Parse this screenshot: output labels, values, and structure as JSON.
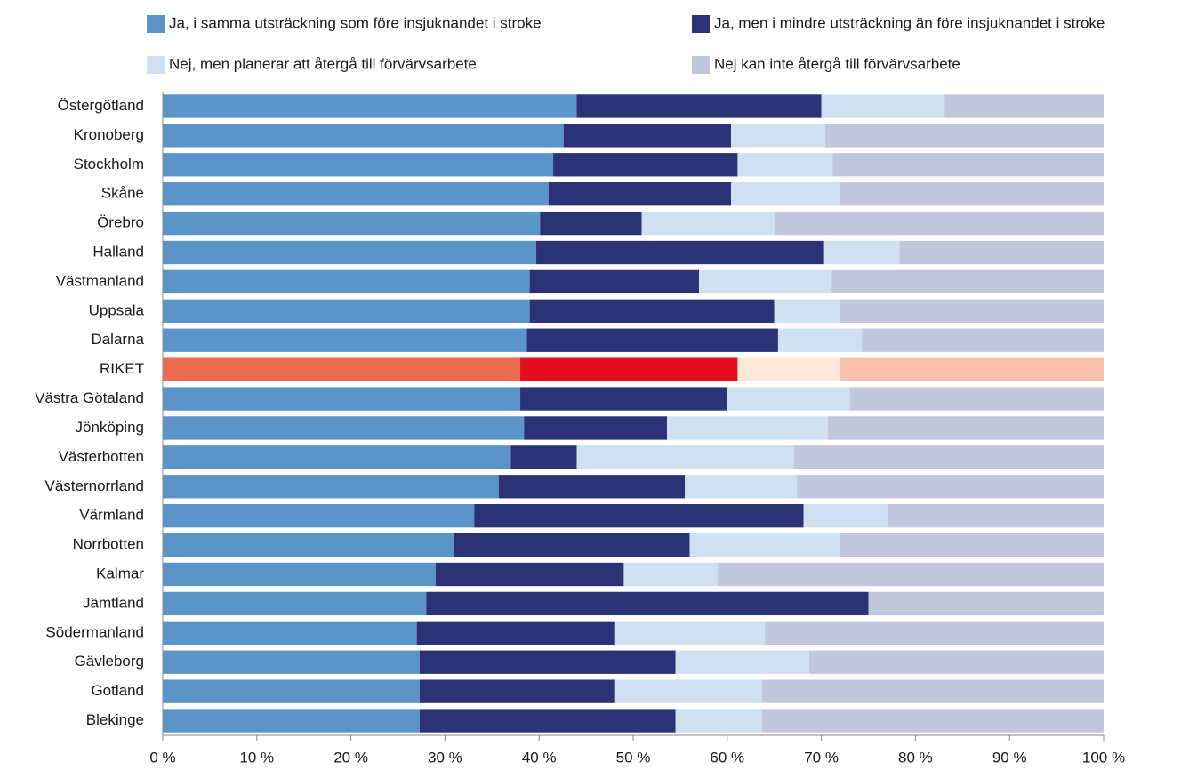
{
  "chart_data": {
    "type": "stacked_barh",
    "categories": [
      "Östergötland",
      "Kronoberg",
      "Stockholm",
      "Skåne",
      "Örebro",
      "Halland",
      "Västmanland",
      "Uppsala",
      "Dalarna",
      "RIKET",
      "Västra Götaland",
      "Jönköping",
      "Västerbotten",
      "Västernorrland",
      "Värmland",
      "Norrbotten",
      "Kalmar",
      "Jämtland",
      "Södermanland",
      "Gävleborg",
      "Gotland",
      "Blekinge"
    ],
    "series": [
      {
        "name": "Ja, i samma utsträckning som före insjuknandet i stroke",
        "color": "#5b94c9",
        "values": [
          44,
          42.6,
          41.5,
          41,
          40.1,
          39.7,
          39,
          39,
          38.7,
          38,
          38,
          38.4,
          37,
          35.7,
          33.1,
          31,
          29,
          28,
          27,
          27.3,
          27.3,
          27.3
        ]
      },
      {
        "name": "Ja, men i mindre utsträckning än före insjuknandet i stroke",
        "color": "#2b3275",
        "values": [
          26,
          17.8,
          19.6,
          19.4,
          10.8,
          30.6,
          18,
          26,
          26.7,
          23.1,
          22,
          15.2,
          7,
          19.8,
          35,
          25,
          20,
          47,
          21,
          27.2,
          20.7,
          27.2
        ]
      },
      {
        "name": "Nej, men planerar att återgå till förvärvsarbete",
        "color": "#cfe1f0",
        "values": [
          13.1,
          10,
          10.1,
          11.6,
          14.1,
          8,
          14.1,
          7,
          8.9,
          10.9,
          13,
          17.1,
          23.1,
          11.9,
          8.9,
          16,
          10,
          0,
          16,
          14.2,
          15.7,
          9.2
        ]
      },
      {
        "name": "Nej kan inte återgå till förvärvsarbete",
        "color": "#bfc8dc",
        "values": [
          16.9,
          29.6,
          28.8,
          28,
          35,
          21.7,
          28.9,
          28,
          25.7,
          28,
          27,
          29.3,
          32.9,
          32.6,
          23,
          28,
          41,
          25,
          36,
          31.3,
          36.3,
          36.3
        ]
      }
    ],
    "highlight": {
      "category": "RIKET",
      "colors": [
        "#ee6a50",
        "#e30f1f",
        "#fde7db",
        "#f8c1ab"
      ]
    },
    "xlim": [
      0,
      100
    ],
    "xticks": [
      {
        "value": 0,
        "label": "0 %"
      },
      {
        "value": 10,
        "label": "10 %"
      },
      {
        "value": 20,
        "label": "20 %"
      },
      {
        "value": 30,
        "label": "30 %"
      },
      {
        "value": 40,
        "label": "40 %"
      },
      {
        "value": 50,
        "label": "50 %"
      },
      {
        "value": 60,
        "label": "60 %"
      },
      {
        "value": 70,
        "label": "70 %"
      },
      {
        "value": 80,
        "label": "80 %"
      },
      {
        "value": 90,
        "label": "90 %"
      },
      {
        "value": 100,
        "label": "100 %"
      }
    ],
    "grid": false,
    "legend": "top"
  }
}
